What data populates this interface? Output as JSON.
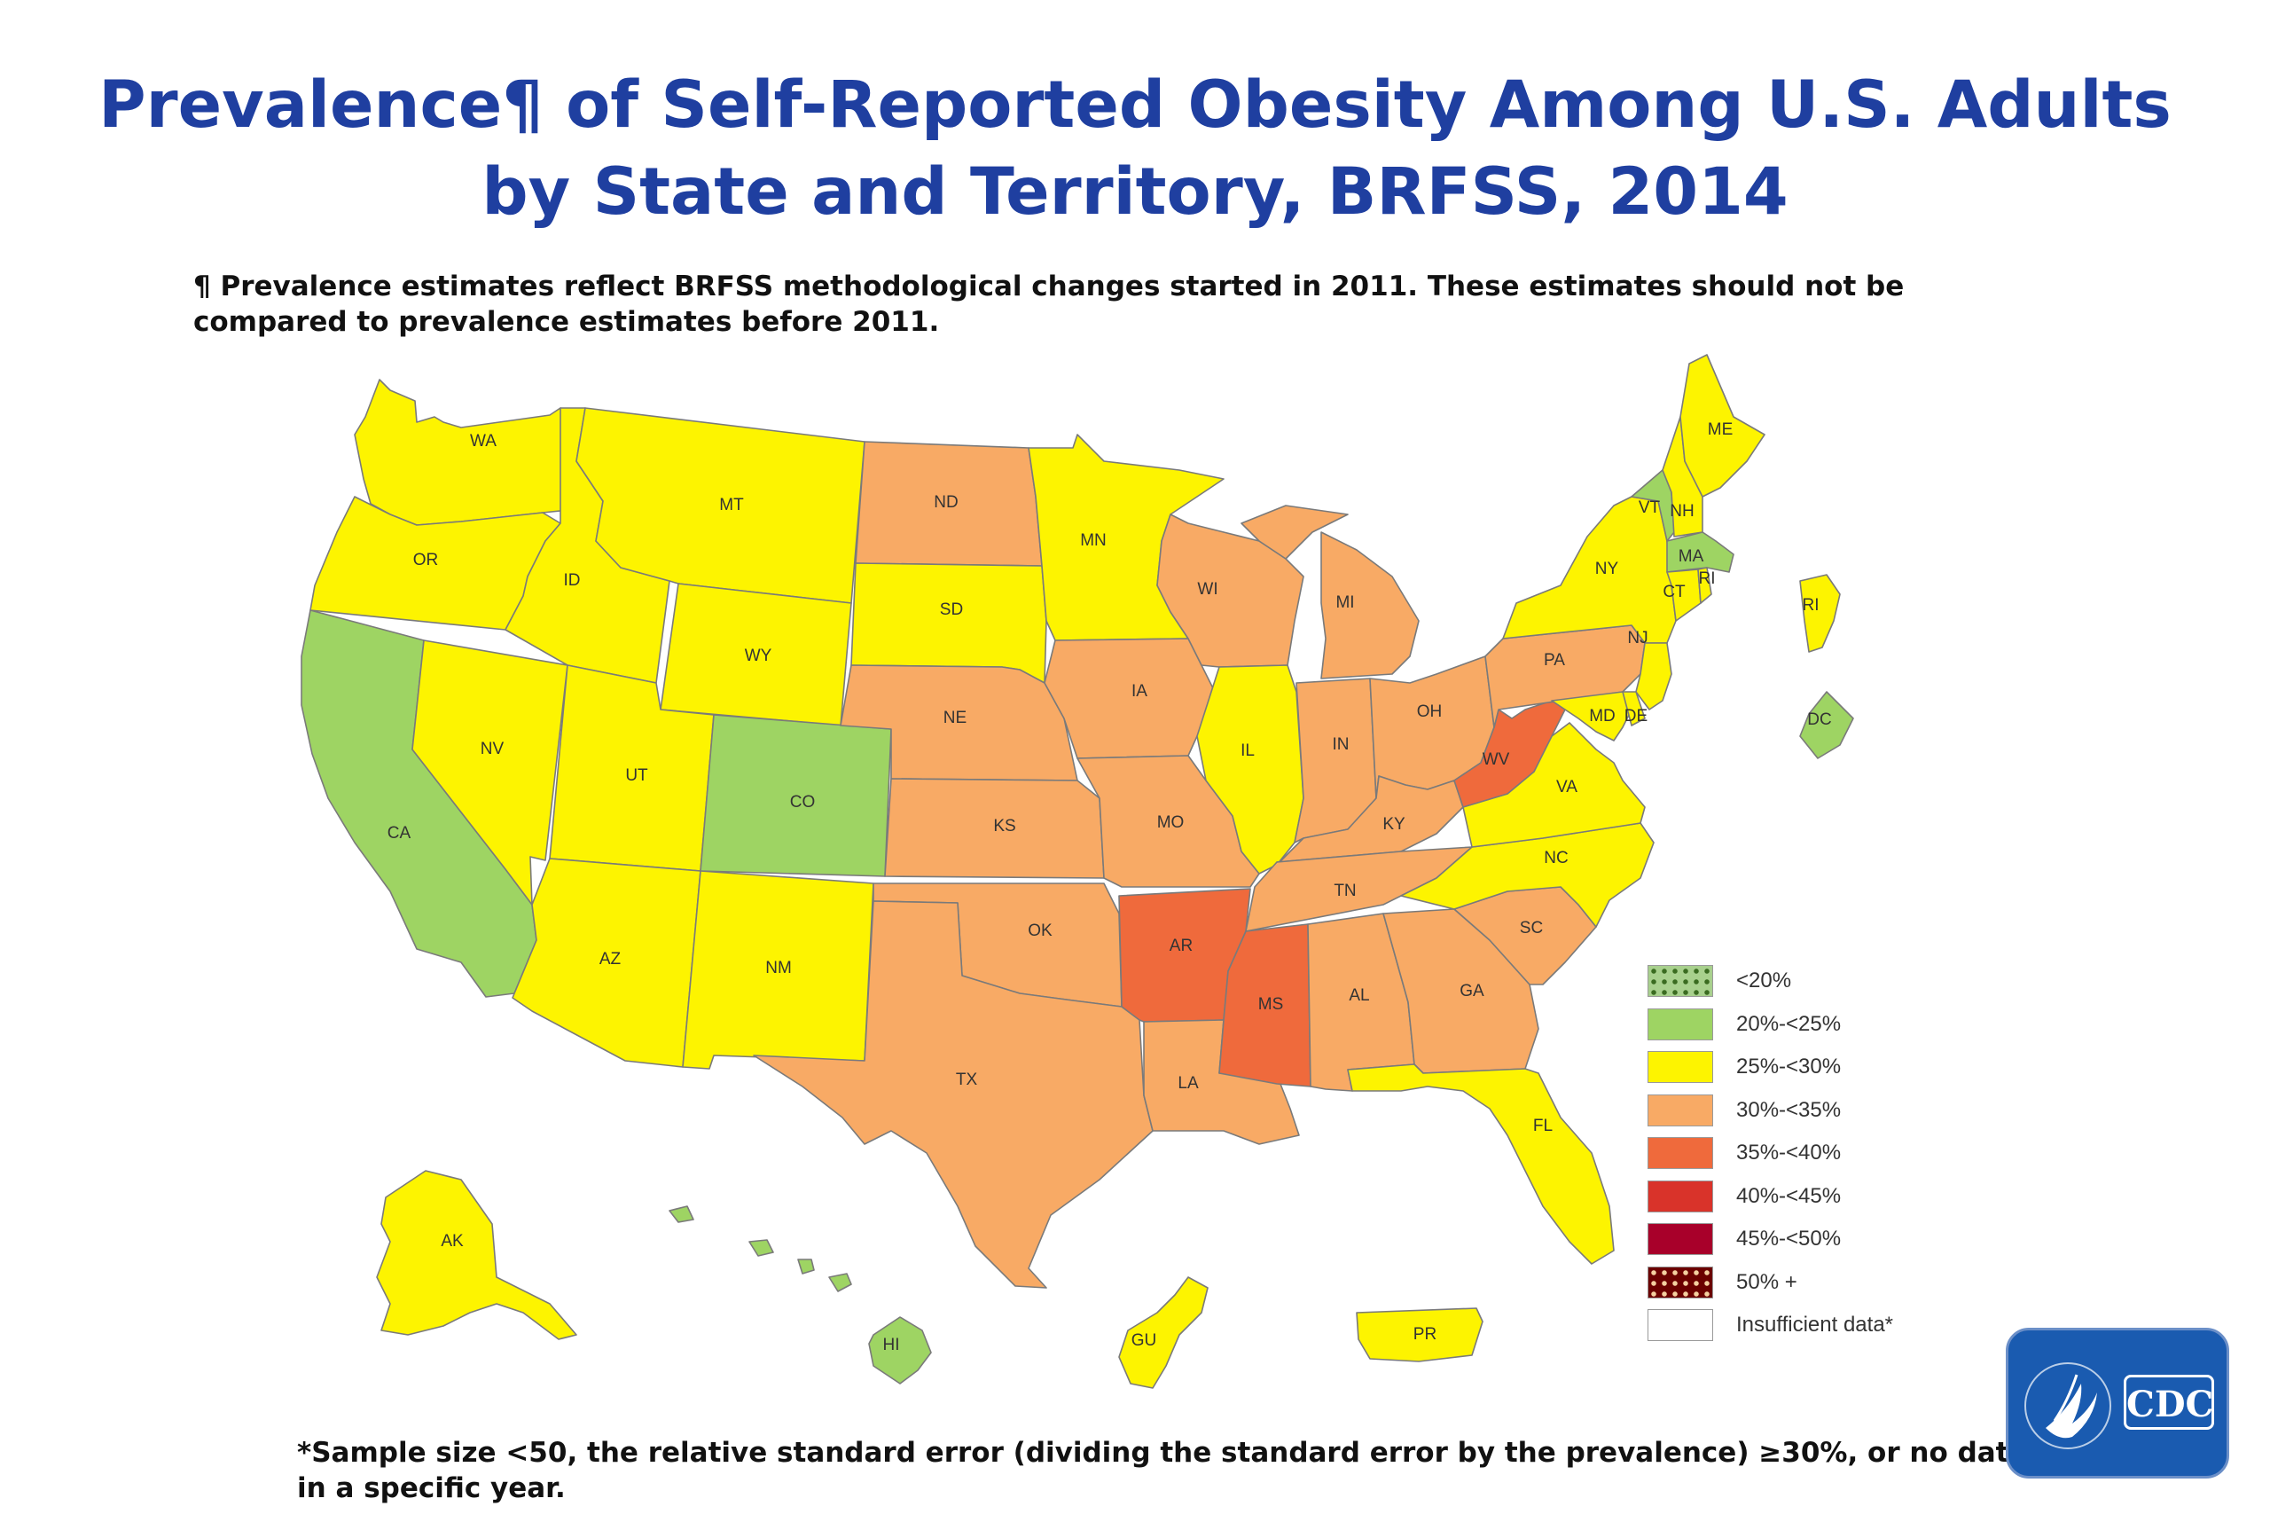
{
  "title_line1": "Prevalence¶ of Self-Reported Obesity Among U.S. Adults",
  "title_line2": "by State and Territory, BRFSS, 2014",
  "note_top": "¶ Prevalence estimates reflect BRFSS methodological changes started in 2011. These estimates should not be compared to prevalence estimates before 2011.",
  "note_bottom": "*Sample size <50, the relative standard error (dividing the standard error by the prevalence) ≥30%, or no data in a specific year.",
  "logo_text": "CDC",
  "colors": {
    "lt20": "#a8d08d",
    "20-25": "#9ed463",
    "25-30": "#fdf400",
    "30-35": "#f8aa65",
    "35-40": "#ef6a3c",
    "40-45": "#d9332a",
    "45-50": "#a8002a",
    "50plus": "#6b0000",
    "insufficient": "#ffffff",
    "border": "#7a7a7a"
  },
  "legend": [
    {
      "label": "<20%",
      "key": "lt20",
      "dotted": "light"
    },
    {
      "label": "20%-<25%",
      "key": "20-25"
    },
    {
      "label": "25%-<30%",
      "key": "25-30"
    },
    {
      "label": "30%-<35%",
      "key": "30-35"
    },
    {
      "label": "35%-<40%",
      "key": "35-40"
    },
    {
      "label": "40%-<45%",
      "key": "40-45"
    },
    {
      "label": "45%-<50%",
      "key": "45-50"
    },
    {
      "label": "50% +",
      "key": "50plus",
      "dotted": "dark"
    },
    {
      "label": "Insufficient data*",
      "key": "insufficient"
    }
  ],
  "states": {
    "WA": "25-30",
    "OR": "25-30",
    "CA": "20-25",
    "NV": "25-30",
    "ID": "25-30",
    "MT": "25-30",
    "WY": "25-30",
    "UT": "25-30",
    "AZ": "25-30",
    "CO": "20-25",
    "NM": "25-30",
    "ND": "30-35",
    "SD": "25-30",
    "NE": "30-35",
    "KS": "30-35",
    "OK": "30-35",
    "TX": "30-35",
    "MN": "25-30",
    "IA": "30-35",
    "MO": "30-35",
    "AR": "35-40",
    "LA": "30-35",
    "WI": "30-35",
    "IL": "25-30",
    "MI": "30-35",
    "IN": "30-35",
    "OH": "30-35",
    "KY": "30-35",
    "TN": "30-35",
    "MS": "35-40",
    "AL": "30-35",
    "GA": "30-35",
    "FL": "25-30",
    "SC": "30-35",
    "NC": "25-30",
    "VA": "25-30",
    "WV": "35-40",
    "PA": "30-35",
    "NY": "25-30",
    "VT": "20-25",
    "NH": "25-30",
    "ME": "25-30",
    "MA": "20-25",
    "CT": "25-30",
    "RI": "25-30",
    "NJ": "25-30",
    "DE": "25-30",
    "MD": "25-30",
    "DC": "20-25",
    "AK": "25-30",
    "HI": "20-25",
    "GU": "25-30",
    "PR": "25-30"
  }
}
